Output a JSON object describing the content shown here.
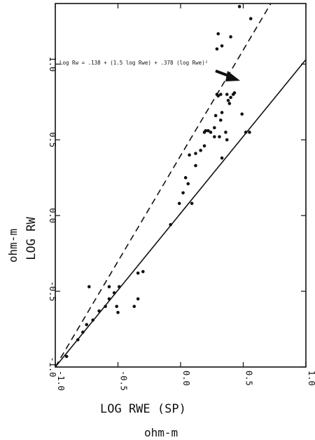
{
  "chart_data": {
    "type": "scatter",
    "title": "",
    "xlabel": "LOG RWE (SP)",
    "xunit": "ohm-m",
    "ylabel": "LOG RW",
    "yunit": "ohm-m",
    "xlim": [
      -1.0,
      1.0
    ],
    "ylim": [
      -1.0,
      1.4
    ],
    "x_ticks": [
      -1.0,
      -0.5,
      0.0,
      0.5,
      1.0
    ],
    "x_tick_labels": [
      "-1.0",
      "-0.5",
      "0.0",
      "0.5",
      "1.0"
    ],
    "y_ticks": [
      -1.0,
      -0.5,
      0.0,
      0.5,
      1.0
    ],
    "y_tick_labels": [
      "-1.0",
      "-0.5",
      "0.0",
      "0.5",
      "1.0"
    ],
    "grid": false,
    "annotation": "Log Rw = .138 + (1.5 log Rwe) + .378 (log Rwe)²",
    "points": [
      {
        "x": -0.91,
        "y": -0.93
      },
      {
        "x": -0.82,
        "y": -0.82
      },
      {
        "x": -0.78,
        "y": -0.77
      },
      {
        "x": -0.75,
        "y": -0.72
      },
      {
        "x": -0.73,
        "y": -0.47
      },
      {
        "x": -0.7,
        "y": -0.69
      },
      {
        "x": -0.65,
        "y": -0.63
      },
      {
        "x": -0.6,
        "y": -0.6
      },
      {
        "x": -0.57,
        "y": -0.55
      },
      {
        "x": -0.57,
        "y": -0.47
      },
      {
        "x": -0.53,
        "y": -0.51
      },
      {
        "x": -0.51,
        "y": -0.6
      },
      {
        "x": -0.5,
        "y": -0.64
      },
      {
        "x": -0.49,
        "y": -0.47
      },
      {
        "x": -0.37,
        "y": -0.6
      },
      {
        "x": -0.34,
        "y": -0.55
      },
      {
        "x": -0.34,
        "y": -0.38
      },
      {
        "x": -0.3,
        "y": -0.37
      },
      {
        "x": -0.08,
        "y": -0.06
      },
      {
        "x": -0.01,
        "y": 0.08
      },
      {
        "x": 0.02,
        "y": 0.15
      },
      {
        "x": 0.04,
        "y": 0.25
      },
      {
        "x": 0.06,
        "y": 0.21
      },
      {
        "x": 0.07,
        "y": 0.4
      },
      {
        "x": 0.09,
        "y": 0.08
      },
      {
        "x": 0.12,
        "y": 0.41
      },
      {
        "x": 0.12,
        "y": 0.33
      },
      {
        "x": 0.16,
        "y": 0.43
      },
      {
        "x": 0.19,
        "y": 0.55
      },
      {
        "x": 0.19,
        "y": 0.46
      },
      {
        "x": 0.2,
        "y": 0.56
      },
      {
        "x": 0.22,
        "y": 0.56
      },
      {
        "x": 0.24,
        "y": 0.55
      },
      {
        "x": 0.27,
        "y": 0.58
      },
      {
        "x": 0.27,
        "y": 0.52
      },
      {
        "x": 0.28,
        "y": 0.66
      },
      {
        "x": 0.29,
        "y": 0.8
      },
      {
        "x": 0.3,
        "y": 0.79
      },
      {
        "x": 0.31,
        "y": 0.52
      },
      {
        "x": 0.32,
        "y": 0.63
      },
      {
        "x": 0.32,
        "y": 0.8
      },
      {
        "x": 0.33,
        "y": 0.68
      },
      {
        "x": 0.36,
        "y": 0.55
      },
      {
        "x": 0.37,
        "y": 0.5
      },
      {
        "x": 0.37,
        "y": 0.8
      },
      {
        "x": 0.38,
        "y": 0.76
      },
      {
        "x": 0.39,
        "y": 0.74
      },
      {
        "x": 0.4,
        "y": 0.78
      },
      {
        "x": 0.42,
        "y": 0.8
      },
      {
        "x": 0.43,
        "y": 0.81
      },
      {
        "x": 0.29,
        "y": 1.1
      },
      {
        "x": 0.3,
        "y": 1.2
      },
      {
        "x": 0.33,
        "y": 1.12
      },
      {
        "x": 0.4,
        "y": 1.18
      },
      {
        "x": 0.47,
        "y": 1.38
      },
      {
        "x": 0.49,
        "y": 0.67
      },
      {
        "x": 0.52,
        "y": 0.55
      },
      {
        "x": 0.55,
        "y": 0.55
      },
      {
        "x": 0.56,
        "y": 1.3
      },
      {
        "x": 0.33,
        "y": 0.38
      }
    ],
    "lines": [
      {
        "style": "dashed",
        "from": [
          -1.0,
          -1.0
        ],
        "to": [
          0.72,
          1.4
        ]
      },
      {
        "style": "solid",
        "from": [
          -1.0,
          -1.0
        ],
        "to": [
          1.0,
          1.03
        ]
      }
    ]
  }
}
